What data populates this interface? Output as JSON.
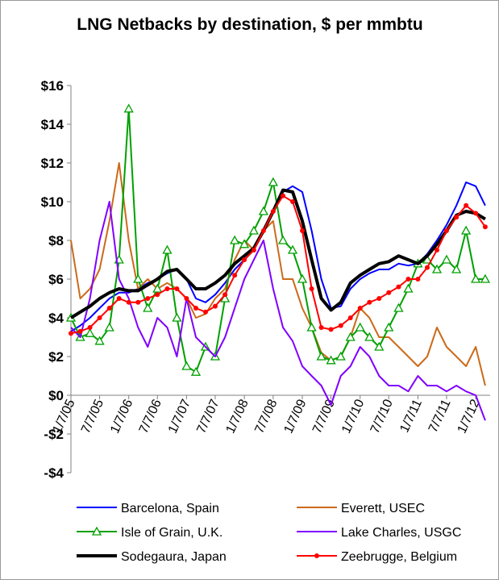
{
  "chart_data": {
    "type": "line",
    "title": "LNG Netbacks by destination, $ per mmbtu",
    "x": [
      "1/7/05",
      "3/7/05",
      "5/7/05",
      "7/7/05",
      "9/7/05",
      "11/7/05",
      "1/7/06",
      "3/7/06",
      "5/7/06",
      "7/7/06",
      "9/7/06",
      "11/7/06",
      "1/7/07",
      "3/7/07",
      "5/7/07",
      "7/7/07",
      "9/7/07",
      "11/7/07",
      "1/7/08",
      "3/7/08",
      "5/7/08",
      "7/7/08",
      "9/7/08",
      "11/7/08",
      "1/7/09",
      "3/7/09",
      "5/7/09",
      "7/7/09",
      "9/7/09",
      "11/7/09",
      "1/7/10",
      "3/7/10",
      "5/7/10",
      "7/7/10",
      "9/7/10",
      "11/7/10",
      "1/7/11",
      "3/7/11",
      "5/7/11",
      "7/7/11",
      "9/7/11",
      "11/7/11",
      "1/7/12",
      "3/7/12"
    ],
    "series": [
      {
        "name": "Barcelona, Spain",
        "color": "#0000ff",
        "values": [
          3.3,
          3.6,
          4.0,
          4.5,
          5.0,
          5.3,
          5.3,
          5.5,
          5.8,
          6.0,
          6.3,
          6.5,
          6.0,
          5.0,
          4.8,
          5.2,
          5.8,
          6.5,
          7.0,
          7.5,
          8.5,
          9.5,
          10.5,
          10.8,
          10.5,
          8.5,
          6.0,
          4.5,
          4.6,
          5.5,
          6.0,
          6.3,
          6.5,
          6.5,
          6.8,
          6.7,
          6.8,
          7.3,
          8.0,
          8.8,
          9.8,
          11.0,
          10.8,
          9.8
        ]
      },
      {
        "name": "Everett, USEC",
        "color": "#cc6a1a",
        "values": [
          8.0,
          5.0,
          5.5,
          6.5,
          9.0,
          12.0,
          8.0,
          5.5,
          6.0,
          5.5,
          5.8,
          5.5,
          5.0,
          4.0,
          4.2,
          5.0,
          5.5,
          7.0,
          8.0,
          7.5,
          8.5,
          9.0,
          6.0,
          6.0,
          4.5,
          3.5,
          2.2,
          1.8,
          2.0,
          3.0,
          4.5,
          4.0,
          3.0,
          3.0,
          2.5,
          2.0,
          1.5,
          2.0,
          3.5,
          2.5,
          2.0,
          1.5,
          2.5,
          0.5
        ]
      },
      {
        "name": "Isle of Grain, U.K.",
        "color": "#00a000",
        "marker": "triangle",
        "values": [
          4.0,
          3.0,
          3.2,
          2.8,
          3.5,
          7.0,
          14.8,
          6.0,
          4.5,
          5.5,
          7.5,
          4.0,
          1.5,
          1.2,
          2.5,
          2.0,
          5.0,
          8.0,
          7.8,
          8.5,
          9.5,
          11.0,
          8.0,
          7.5,
          6.0,
          3.5,
          2.0,
          1.8,
          2.0,
          3.0,
          3.5,
          3.0,
          2.5,
          3.5,
          4.5,
          5.5,
          6.8,
          7.0,
          6.5,
          7.0,
          6.5,
          8.5,
          6.0,
          6.0
        ]
      },
      {
        "name": "Lake Charles,  USGC",
        "color": "#8000ff",
        "values": [
          3.5,
          3.0,
          5.0,
          8.0,
          10.0,
          6.0,
          5.0,
          3.5,
          2.5,
          4.0,
          3.5,
          2.0,
          5.0,
          3.0,
          2.5,
          2.0,
          3.0,
          4.5,
          6.0,
          7.0,
          8.0,
          5.5,
          3.5,
          2.8,
          1.5,
          1.0,
          0.5,
          -0.5,
          1.0,
          1.5,
          2.5,
          2.0,
          1.0,
          0.5,
          0.5,
          0.2,
          1.0,
          0.5,
          0.5,
          0.2,
          0.5,
          0.2,
          0.0,
          -1.3
        ]
      },
      {
        "name": "Sodegaura, Japan",
        "color": "#000000",
        "width": 4,
        "values": [
          4.0,
          4.3,
          4.6,
          5.0,
          5.3,
          5.5,
          5.4,
          5.4,
          5.7,
          6.0,
          6.4,
          6.5,
          6.0,
          5.5,
          5.5,
          5.8,
          6.2,
          6.8,
          7.2,
          7.6,
          8.5,
          9.5,
          10.6,
          10.5,
          9.0,
          7.0,
          5.0,
          4.4,
          4.8,
          5.8,
          6.2,
          6.5,
          6.8,
          6.9,
          7.2,
          7.0,
          6.8,
          7.2,
          7.8,
          8.5,
          9.3,
          9.5,
          9.4,
          9.1
        ]
      },
      {
        "name": "Zeebrugge, Belgium",
        "color": "#ff0000",
        "marker": "circle",
        "values": [
          3.2,
          3.3,
          3.5,
          4.0,
          4.5,
          5.0,
          4.8,
          4.8,
          5.0,
          5.2,
          5.5,
          5.5,
          5.0,
          4.5,
          4.3,
          4.6,
          5.2,
          6.2,
          7.0,
          7.5,
          8.5,
          9.5,
          10.3,
          10.0,
          8.5,
          5.5,
          3.5,
          3.4,
          3.6,
          4.0,
          4.5,
          4.8,
          5.0,
          5.3,
          5.6,
          6.0,
          6.0,
          6.6,
          7.5,
          8.5,
          9.2,
          9.8,
          9.4,
          8.7
        ]
      }
    ],
    "xlim": [
      "1/7/05",
      "4/7/12"
    ],
    "xticks": [
      "1/7/05",
      "7/7/05",
      "1/7/06",
      "7/7/06",
      "1/7/07",
      "7/7/07",
      "1/7/08",
      "7/7/08",
      "1/7/09",
      "7/7/09",
      "1/7/10",
      "7/7/10",
      "1/7/11",
      "7/7/11",
      "1/7/12"
    ],
    "ylim": [
      -4,
      16
    ],
    "yticks": [
      {
        "value": -4,
        "label": "-$4"
      },
      {
        "value": -2,
        "label": "-$2"
      },
      {
        "value": 0,
        "label": "$0"
      },
      {
        "value": 2,
        "label": "$2"
      },
      {
        "value": 4,
        "label": "$4"
      },
      {
        "value": 6,
        "label": "$6"
      },
      {
        "value": 8,
        "label": "$8"
      },
      {
        "value": 10,
        "label": "$10"
      },
      {
        "value": 12,
        "label": "$12"
      },
      {
        "value": 14,
        "label": "$14"
      },
      {
        "value": 16,
        "label": "$16"
      }
    ],
    "grid": false,
    "legend": "bottom"
  }
}
